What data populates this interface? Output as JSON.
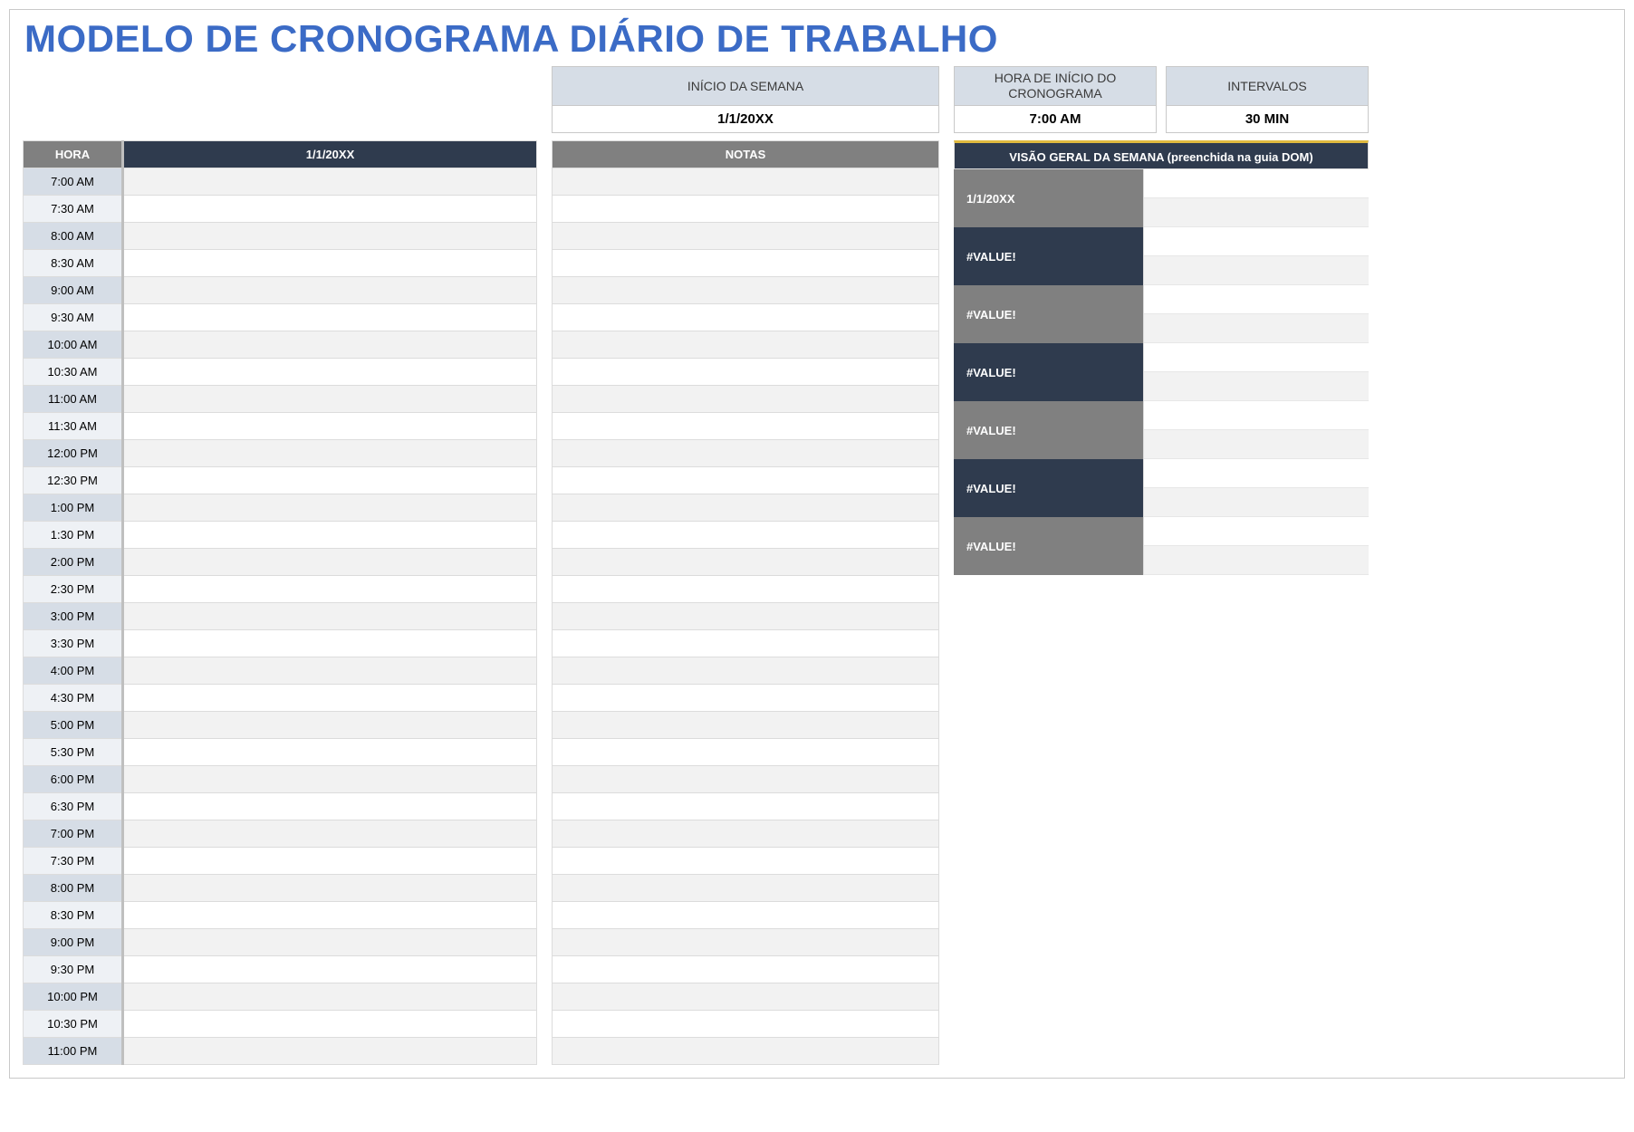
{
  "title": "MODELO DE CRONOGRAMA DIÁRIO DE TRABALHO",
  "colors": {
    "title": "#3b6bc6",
    "headerGrey": "#808080",
    "headerNavy": "#2f3b4e",
    "controlsHeaderBg": "#d6dde6",
    "timeEvenBg": "#d6dde6",
    "timeOddBg": "#eef1f5",
    "rowEvenBg": "#f2f2f2",
    "rowOddBg": "#ffffff",
    "accentTop": "#e0ba3f",
    "border": "#dcdcdc"
  },
  "controls": {
    "weekStart": {
      "label": "INÍCIO DA SEMANA",
      "value": "1/1/20XX"
    },
    "scheduleStart": {
      "label": "HORA DE INÍCIO DO CRONOGRAMA",
      "value": "7:00 AM"
    },
    "intervals": {
      "label": "INTERVALOS",
      "value": "30 MIN"
    }
  },
  "scheduleTable": {
    "headers": {
      "hour": "HORA",
      "date": "1/1/20XX"
    },
    "times": [
      "7:00 AM",
      "7:30 AM",
      "8:00 AM",
      "8:30 AM",
      "9:00 AM",
      "9:30 AM",
      "10:00 AM",
      "10:30 AM",
      "11:00 AM",
      "11:30 AM",
      "12:00 PM",
      "12:30 PM",
      "1:00 PM",
      "1:30 PM",
      "2:00 PM",
      "2:30 PM",
      "3:00 PM",
      "3:30 PM",
      "4:00 PM",
      "4:30 PM",
      "5:00 PM",
      "5:30 PM",
      "6:00 PM",
      "6:30 PM",
      "7:00 PM",
      "7:30 PM",
      "8:00 PM",
      "8:30 PM",
      "9:00 PM",
      "9:30 PM",
      "10:00 PM",
      "10:30 PM",
      "11:00 PM"
    ]
  },
  "notes": {
    "header": "NOTAS",
    "rows": 33
  },
  "weekOverview": {
    "header": "VISÃO GERAL DA SEMANA (preenchida na guia DOM)",
    "labels": [
      "1/1/20XX",
      "#VALUE!",
      "#VALUE!",
      "#VALUE!",
      "#VALUE!",
      "#VALUE!",
      "#VALUE!"
    ],
    "labelColors": [
      "grey",
      "navy",
      "grey",
      "navy",
      "grey",
      "navy",
      "grey"
    ]
  }
}
